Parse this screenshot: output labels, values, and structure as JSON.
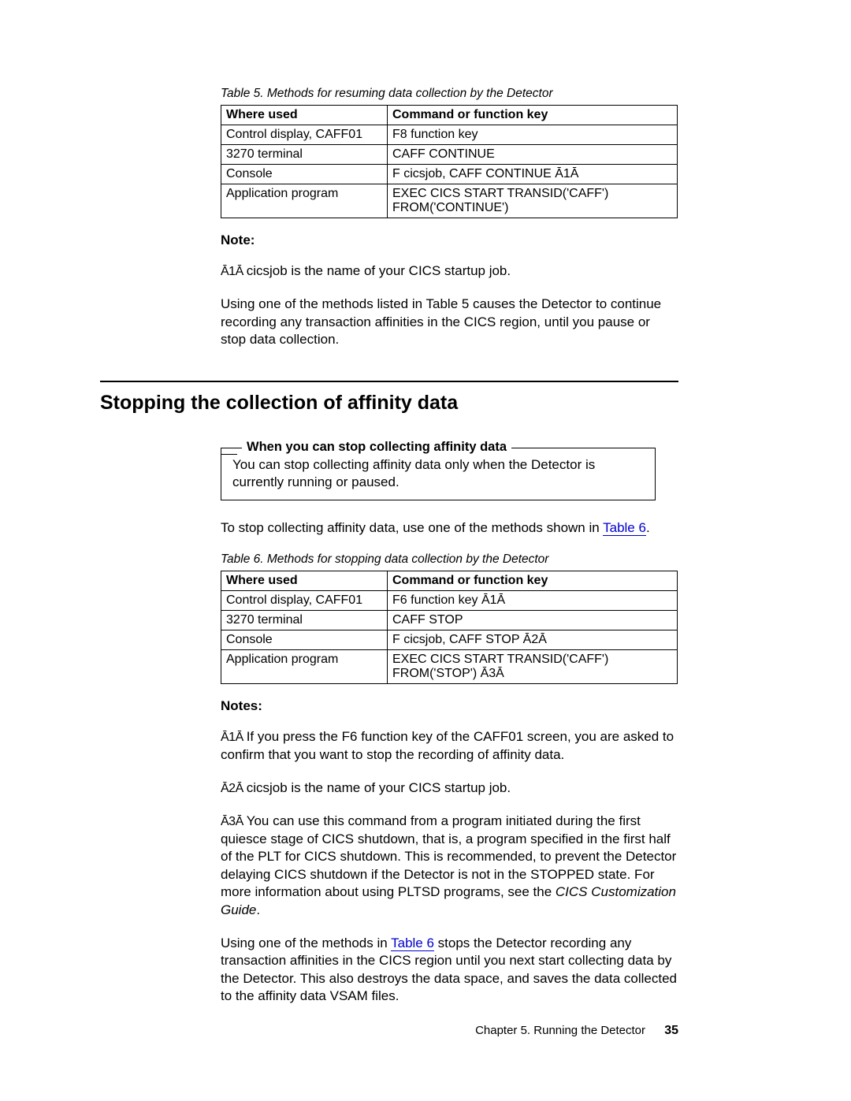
{
  "table5": {
    "caption": "Table 5. Methods for resuming data collection by the Detector",
    "header": {
      "c1": "Where used",
      "c2": "Command or function key"
    },
    "rows": [
      {
        "c1": "Control display, CAFF01",
        "c2": "F8 function key"
      },
      {
        "c1": "3270 terminal",
        "c2": "CAFF CONTINUE"
      },
      {
        "c1": "Console",
        "c2": "F cicsjob, CAFF CONTINUE  Ā1Ā"
      },
      {
        "c1": "Application program",
        "c2": "EXEC CICS START TRANSID('CAFF') FROM('CONTINUE')"
      }
    ]
  },
  "note1": {
    "head": "Note:",
    "body_prefix": "Ā1Ā ",
    "body": "cicsjob is the name of your CICS startup job."
  },
  "para_t5": "Using one of the methods listed in Table 5 causes the Detector to continue recording any transaction affinities in the CICS region, until you pause or stop data collection.",
  "section_heading": "Stopping the collection of affinity data",
  "fieldset": {
    "legend": "When you can stop collecting affinity data",
    "body": "You can stop collecting affinity data only when the Detector is currently running or paused."
  },
  "para_t6_lead": {
    "pre": "To stop collecting affinity data, use one of the methods shown in ",
    "link": "Table 6",
    "post": "."
  },
  "table6": {
    "caption": "Table 6. Methods for stopping data collection by the Detector",
    "header": {
      "c1": "Where used",
      "c2": "Command or function key"
    },
    "rows": [
      {
        "c1": "Control display, CAFF01",
        "c2": "F6 function key  Ā1Ā"
      },
      {
        "c1": "3270 terminal",
        "c2": "CAFF STOP"
      },
      {
        "c1": "Console",
        "c2": "F cicsjob, CAFF STOP  Ā2Ā"
      },
      {
        "c1": "Application program",
        "c2": "EXEC CICS START TRANSID('CAFF') FROM('STOP') Ā3Ā"
      }
    ]
  },
  "notes2": {
    "head": "Notes:",
    "n1_prefix": "Ā1Ā ",
    "n1": "If you press the F6 function key of the CAFF01 screen, you are asked to confirm that you want to stop the recording of affinity data.",
    "n2_prefix": "Ā2Ā ",
    "n2": "cicsjob is the name of your CICS startup job.",
    "n3_prefix": "Ā3Ā ",
    "n3_a": "You can use this command from a program initiated during the first quiesce stage of CICS shutdown, that is, a program specified in the first half of the PLT for CICS shutdown. This is recommended, to prevent the Detector delaying CICS shutdown if the Detector is not in the STOPPED state. For more information about using PLTSD programs, see the ",
    "n3_link": "CICS Customization Guide",
    "n3_b": "."
  },
  "para_tail": {
    "pre": "Using one of the methods in ",
    "link": "Table 6",
    "post": " stops the Detector recording any transaction affinities in the CICS region until you next start collecting data by the Detector. This also destroys the data space, and saves the data collected to the affinity data VSAM files."
  },
  "footer": {
    "chapter": "Chapter 5. Running the Detector",
    "page": "35"
  }
}
